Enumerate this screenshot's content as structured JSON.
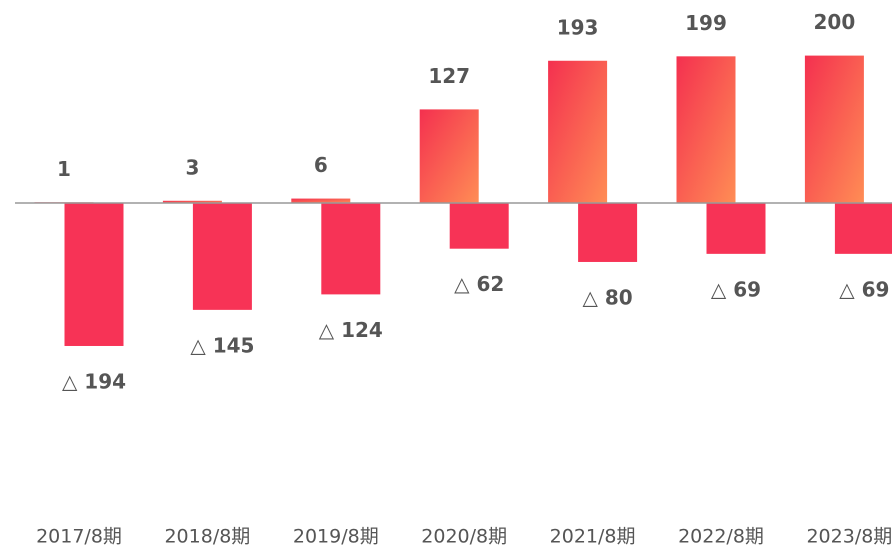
{
  "chart_data": {
    "type": "bar",
    "categories": [
      "2017/8期",
      "2018/8期",
      "2019/8期",
      "2020/8期",
      "2021/8期",
      "2022/8期",
      "2023/8期"
    ],
    "series": [
      {
        "gradient": [
          "#f4304f",
          "#ff8d55"
        ],
        "values": [
          1,
          3,
          6,
          127,
          193,
          199,
          200
        ]
      },
      {
        "color": "#f73356",
        "values": [
          -194,
          -145,
          -124,
          -62,
          -80,
          -69,
          -69
        ],
        "value_labels": [
          "△ 194",
          "△ 145",
          "△ 124",
          "△ 62",
          "△ 80",
          "△ 69",
          "△ 69"
        ]
      }
    ]
  }
}
